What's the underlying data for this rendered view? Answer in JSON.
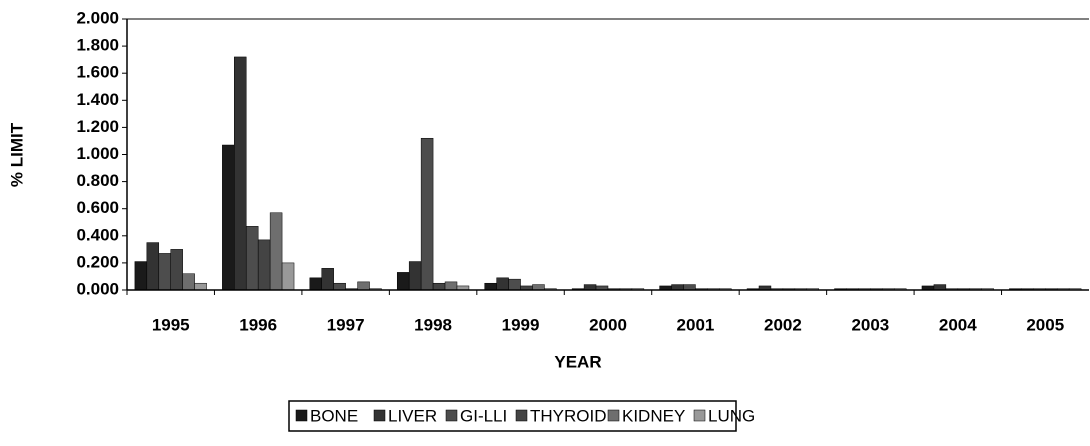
{
  "chart_data": {
    "type": "bar",
    "xlabel": "YEAR",
    "ylabel": "% LIMIT",
    "categories": [
      "1995",
      "1996",
      "1997",
      "1998",
      "1999",
      "2000",
      "2001",
      "2002",
      "2003",
      "2004",
      "2005"
    ],
    "series": [
      {
        "name": "BONE",
        "color": "#1a1a1a",
        "values": [
          0.21,
          1.07,
          0.09,
          0.13,
          0.05,
          0.01,
          0.03,
          0.01,
          0.01,
          0.03,
          0.01
        ]
      },
      {
        "name": "LIVER",
        "color": "#333333",
        "values": [
          0.35,
          1.72,
          0.16,
          0.21,
          0.09,
          0.04,
          0.04,
          0.03,
          0.01,
          0.04,
          0.01
        ]
      },
      {
        "name": "GI-LLI",
        "color": "#4d4d4d",
        "values": [
          0.27,
          0.47,
          0.05,
          1.12,
          0.08,
          0.03,
          0.04,
          0.01,
          0.01,
          0.01,
          0.01
        ]
      },
      {
        "name": "THYROID",
        "color": "#444444",
        "values": [
          0.3,
          0.37,
          0.01,
          0.05,
          0.03,
          0.01,
          0.01,
          0.01,
          0.01,
          0.01,
          0.01
        ]
      },
      {
        "name": "KIDNEY",
        "color": "#6e6e6e",
        "values": [
          0.12,
          0.57,
          0.06,
          0.06,
          0.04,
          0.01,
          0.01,
          0.01,
          0.01,
          0.01,
          0.01
        ]
      },
      {
        "name": "LUNG",
        "color": "#999999",
        "values": [
          0.05,
          0.2,
          0.01,
          0.03,
          0.01,
          0.01,
          0.01,
          0.01,
          0.01,
          0.01,
          0.01
        ]
      }
    ],
    "ylim": [
      0,
      2
    ],
    "yticks": [
      {
        "value": 0,
        "label": "0.000"
      },
      {
        "value": 0.2,
        "label": "0.200"
      },
      {
        "value": 0.4,
        "label": "0.400"
      },
      {
        "value": 0.6,
        "label": "0.600"
      },
      {
        "value": 0.8,
        "label": "0.800"
      },
      {
        "value": 1.0,
        "label": "1.000"
      },
      {
        "value": 1.2,
        "label": "1.200"
      },
      {
        "value": 1.4,
        "label": "1.400"
      },
      {
        "value": 1.6,
        "label": "1.600"
      },
      {
        "value": 1.8,
        "label": "1.800"
      },
      {
        "value": 2.0,
        "label": "2.000"
      }
    ],
    "grid": false,
    "legend": "bottom"
  }
}
